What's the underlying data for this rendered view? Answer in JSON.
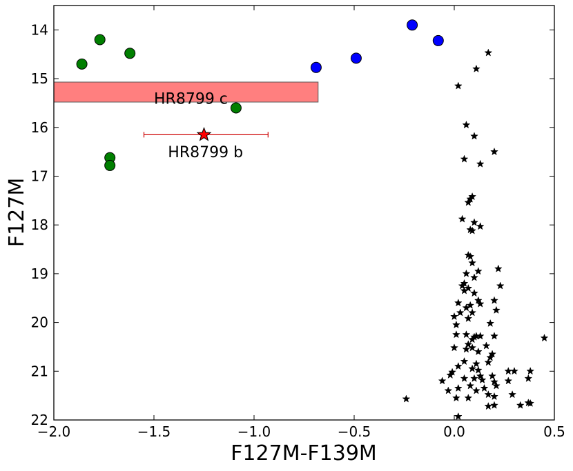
{
  "chart_data": {
    "type": "scatter",
    "xlabel": "F127M-F139M",
    "ylabel": "F127M",
    "xlim": [
      -2.0,
      0.5
    ],
    "ylim": [
      22,
      13.5
    ],
    "y_inverted": true,
    "grid": false,
    "xticks": [
      -2.0,
      -1.5,
      -1.0,
      -0.5,
      0.0,
      0.5
    ],
    "xtick_labels": [
      "−2.0",
      "−1.5",
      "−1.0",
      "−0.5",
      "0.0",
      "0.5"
    ],
    "yticks": [
      14,
      15,
      16,
      17,
      18,
      19,
      20,
      21,
      22
    ],
    "ytick_labels": [
      "14",
      "15",
      "16",
      "17",
      "18",
      "19",
      "20",
      "21",
      "22"
    ],
    "colors": {
      "green_dots": "#007f00",
      "blue_dots": "#0000ff",
      "background_stars": "#000000",
      "planet_b": "#ff0000",
      "band_fill": "#ff7f7f",
      "errorbar": "#cc0000"
    },
    "series": [
      {
        "marker": "circle",
        "color": "#007f00",
        "points": [
          {
            "x": -1.86,
            "y": 14.7
          },
          {
            "x": -1.77,
            "y": 14.2
          },
          {
            "x": -1.62,
            "y": 14.48
          },
          {
            "x": -1.09,
            "y": 15.6
          },
          {
            "x": -1.72,
            "y": 16.62
          },
          {
            "x": -1.72,
            "y": 16.78
          }
        ]
      },
      {
        "marker": "circle",
        "color": "#0000ff",
        "points": [
          {
            "x": -0.69,
            "y": 14.77
          },
          {
            "x": -0.49,
            "y": 14.58
          },
          {
            "x": -0.21,
            "y": 13.9
          },
          {
            "x": -0.08,
            "y": 14.22
          }
        ]
      },
      {
        "marker": "star",
        "color": "#000000",
        "points": [
          {
            "x": 0.17,
            "y": 14.47
          },
          {
            "x": 0.11,
            "y": 14.8
          },
          {
            "x": 0.02,
            "y": 15.15
          },
          {
            "x": 0.06,
            "y": 15.95
          },
          {
            "x": 0.1,
            "y": 16.18
          },
          {
            "x": 0.2,
            "y": 16.5
          },
          {
            "x": 0.05,
            "y": 16.65
          },
          {
            "x": 0.13,
            "y": 16.75
          },
          {
            "x": 0.09,
            "y": 17.42
          },
          {
            "x": 0.08,
            "y": 17.47
          },
          {
            "x": 0.07,
            "y": 17.54
          },
          {
            "x": 0.04,
            "y": 17.88
          },
          {
            "x": 0.1,
            "y": 17.95
          },
          {
            "x": 0.13,
            "y": 18.03
          },
          {
            "x": 0.08,
            "y": 18.1
          },
          {
            "x": 0.09,
            "y": 18.12
          },
          {
            "x": 0.07,
            "y": 18.62
          },
          {
            "x": 0.08,
            "y": 18.65
          },
          {
            "x": 0.09,
            "y": 18.78
          },
          {
            "x": 0.22,
            "y": 18.9
          },
          {
            "x": 0.12,
            "y": 18.95
          },
          {
            "x": 0.06,
            "y": 19.0
          },
          {
            "x": 0.1,
            "y": 19.08
          },
          {
            "x": 0.05,
            "y": 19.2
          },
          {
            "x": 0.04,
            "y": 19.25
          },
          {
            "x": 0.07,
            "y": 19.3
          },
          {
            "x": 0.23,
            "y": 19.25
          },
          {
            "x": 0.05,
            "y": 19.35
          },
          {
            "x": 0.1,
            "y": 19.4
          },
          {
            "x": 0.12,
            "y": 19.55
          },
          {
            "x": 0.2,
            "y": 19.55
          },
          {
            "x": 0.02,
            "y": 19.6
          },
          {
            "x": 0.13,
            "y": 19.62
          },
          {
            "x": 0.08,
            "y": 19.65
          },
          {
            "x": 0.06,
            "y": 19.7
          },
          {
            "x": 0.21,
            "y": 19.75
          },
          {
            "x": 0.03,
            "y": 19.8
          },
          {
            "x": 0.09,
            "y": 19.8
          },
          {
            "x": 0.0,
            "y": 19.88
          },
          {
            "x": 0.07,
            "y": 19.92
          },
          {
            "x": 0.01,
            "y": 20.05
          },
          {
            "x": 0.18,
            "y": 20.02
          },
          {
            "x": 0.06,
            "y": 20.25
          },
          {
            "x": 0.1,
            "y": 20.3
          },
          {
            "x": 0.11,
            "y": 20.28
          },
          {
            "x": 0.13,
            "y": 20.28
          },
          {
            "x": 0.2,
            "y": 20.28
          },
          {
            "x": 0.01,
            "y": 20.25
          },
          {
            "x": 0.09,
            "y": 20.35
          },
          {
            "x": 0.07,
            "y": 20.45
          },
          {
            "x": 0.16,
            "y": 20.48
          },
          {
            "x": 0.0,
            "y": 20.52
          },
          {
            "x": 0.06,
            "y": 20.55
          },
          {
            "x": 0.09,
            "y": 20.52
          },
          {
            "x": 0.12,
            "y": 20.6
          },
          {
            "x": 0.19,
            "y": 20.65
          },
          {
            "x": 0.45,
            "y": 20.32
          },
          {
            "x": 0.18,
            "y": 20.72
          },
          {
            "x": 0.17,
            "y": 20.82
          },
          {
            "x": 0.05,
            "y": 20.8
          },
          {
            "x": 0.11,
            "y": 20.85
          },
          {
            "x": 0.02,
            "y": 20.9
          },
          {
            "x": 0.09,
            "y": 20.95
          },
          {
            "x": 0.12,
            "y": 20.98
          },
          {
            "x": 0.27,
            "y": 21.0
          },
          {
            "x": 0.3,
            "y": 21.0
          },
          {
            "x": 0.38,
            "y": 21.0
          },
          {
            "x": -0.01,
            "y": 21.02
          },
          {
            "x": -0.02,
            "y": 21.08
          },
          {
            "x": 0.13,
            "y": 21.1
          },
          {
            "x": 0.19,
            "y": 21.1
          },
          {
            "x": 0.1,
            "y": 21.15
          },
          {
            "x": 0.05,
            "y": 21.15
          },
          {
            "x": 0.37,
            "y": 21.15
          },
          {
            "x": -0.06,
            "y": 21.2
          },
          {
            "x": 0.14,
            "y": 21.18
          },
          {
            "x": 0.27,
            "y": 21.2
          },
          {
            "x": 0.2,
            "y": 21.22
          },
          {
            "x": 0.08,
            "y": 21.3
          },
          {
            "x": 0.15,
            "y": 21.35
          },
          {
            "x": 0.21,
            "y": 21.3
          },
          {
            "x": 0.02,
            "y": 21.35
          },
          {
            "x": 0.11,
            "y": 21.4
          },
          {
            "x": -0.03,
            "y": 21.4
          },
          {
            "x": 0.17,
            "y": 21.48
          },
          {
            "x": 0.2,
            "y": 21.52
          },
          {
            "x": 0.29,
            "y": 21.48
          },
          {
            "x": 0.01,
            "y": 21.55
          },
          {
            "x": 0.07,
            "y": 21.55
          },
          {
            "x": -0.24,
            "y": 21.57
          },
          {
            "x": 0.37,
            "y": 21.65
          },
          {
            "x": 0.38,
            "y": 21.66
          },
          {
            "x": 0.17,
            "y": 21.72
          },
          {
            "x": 0.33,
            "y": 21.7
          },
          {
            "x": 0.2,
            "y": 21.7
          },
          {
            "x": 0.02,
            "y": 21.93
          }
        ]
      },
      {
        "marker": "star",
        "color": "#ff0000",
        "points": [
          {
            "x": -1.25,
            "y": 16.15,
            "xerr_low": -1.55,
            "xerr_high": -0.93
          }
        ]
      }
    ],
    "band": {
      "x_min": -2.0,
      "x_max": -0.68,
      "y_top": 15.07,
      "y_bottom": 15.48
    },
    "annotations": [
      {
        "text": "HR8799 c",
        "x": -1.5,
        "y": 15.4
      },
      {
        "text": "HR8799 b",
        "x": -1.43,
        "y": 16.5
      }
    ]
  }
}
